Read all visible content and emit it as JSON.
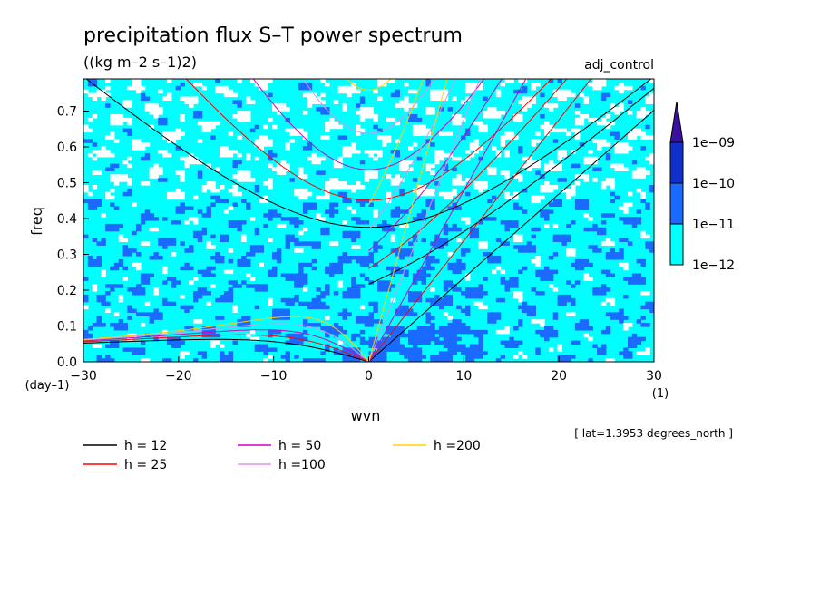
{
  "chart_data": {
    "type": "heatmap",
    "title": "precipitation flux S–T power spectrum",
    "subtitle": "((kg m–2 s–1)2)",
    "run_label": "adj_control",
    "xlabel": "wvn",
    "ylabel": "freq",
    "x_unit": "(1)",
    "y_unit": "(day–1)",
    "footnote": "[ lat=1.3953 degrees_north ]",
    "xlim": [
      -30,
      30
    ],
    "ylim": [
      0,
      0.79
    ],
    "x_ticks": [
      -30,
      -20,
      -10,
      0,
      10,
      20,
      30
    ],
    "x_tick_labels": [
      "−30",
      "−20",
      "−10",
      "0",
      "10",
      "20",
      "30"
    ],
    "y_ticks": [
      0,
      0.1,
      0.2,
      0.3,
      0.4,
      0.5,
      0.6,
      0.7
    ],
    "y_tick_labels": [
      "0.0",
      "0.1",
      "0.2",
      "0.3",
      "0.4",
      "0.5",
      "0.6",
      "0.7"
    ],
    "colorbar": {
      "levels": [
        "1e−12",
        "1e−11",
        "1e−10",
        "1e−09"
      ],
      "colors": [
        "#00ffff",
        "#1a6aff",
        "#1030cc",
        "#3a10a0"
      ],
      "extend": "max"
    },
    "dispersion_curves": [
      {
        "name": "h = 12",
        "color": "#000000",
        "h": 12
      },
      {
        "name": "h = 25",
        "color": "#ff0000",
        "h": 25
      },
      {
        "name": "h = 50",
        "color": "#d000c0",
        "h": 50
      },
      {
        "name": "h =100",
        "color": "#e090e8",
        "h": 100
      },
      {
        "name": "h =200",
        "color": "#ffd000",
        "h": 200
      }
    ],
    "legend_placement": "bottom"
  }
}
